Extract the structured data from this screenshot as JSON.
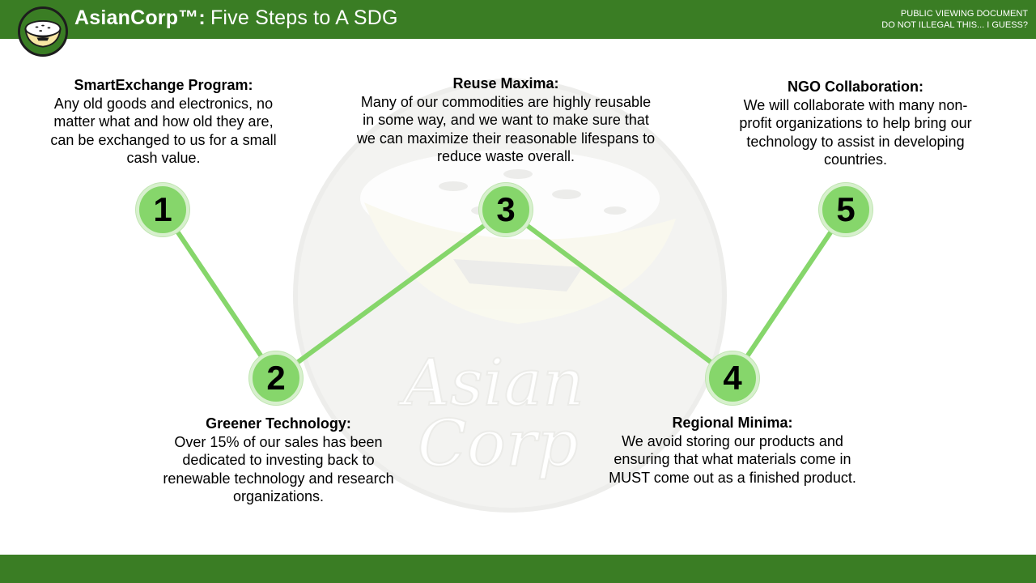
{
  "header": {
    "brand": "AsianCorp™:",
    "subtitle": "Five Steps to A SDG",
    "notice_line1": "PUBLIC VIEWING DOCUMENT",
    "notice_line2": "DO NOT ILLEGAL THIS... I GUESS?"
  },
  "logo": {
    "icon": "rice-bowl-icon"
  },
  "watermark": {
    "icon": "rice-bowl-icon",
    "text_line1": "Asian",
    "text_line2": "Corp"
  },
  "colors": {
    "header_bar": "#3a7d24",
    "node_fill": "#86d66b",
    "connector": "#86d66b"
  },
  "steps": [
    {
      "number": "1",
      "title": "SmartExchange Program:",
      "description": "Any old goods and electronics, no matter what and how old they are, can be exchanged to us for a small cash value."
    },
    {
      "number": "2",
      "title": "Greener Technology:",
      "description": "Over 15% of our sales has been dedicated to investing back to renewable technology and research organizations."
    },
    {
      "number": "3",
      "title": "Reuse Maxima:",
      "description": "Many of our commodities are highly reusable in some way, and we want to make sure that we can maximize their reasonable lifespans to reduce waste overall."
    },
    {
      "number": "4",
      "title": "Regional Minima:",
      "description": "We avoid storing our products and ensuring that what materials come in MUST come out as a finished product."
    },
    {
      "number": "5",
      "title": "NGO Collaboration:",
      "description": "We will collaborate with many non-profit organizations to help bring our technology to assist in developing countries."
    }
  ]
}
